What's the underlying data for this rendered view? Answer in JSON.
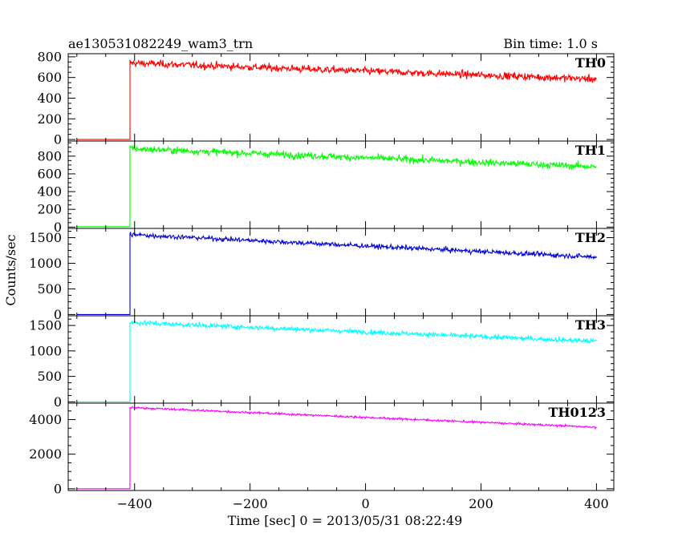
{
  "header": {
    "title": "ae130531082249_wam3_trn",
    "bin_time": "Bin time: 1.0 s"
  },
  "chart_data": {
    "type": "line",
    "xlabel": "Time [sec] 0 = 2013/05/31 08:22:49",
    "ylabel": "Counts/sec",
    "xlim": [
      -515,
      430
    ],
    "x_ticks": [
      -400,
      -200,
      0,
      200,
      400
    ],
    "x_tick_labels": [
      "−400",
      "−200",
      "0",
      "200",
      "400"
    ],
    "x_start": -500,
    "onset_x": -408,
    "x_end": 400,
    "grid": false,
    "series": [
      {
        "name": "TH0",
        "color": "#ff0000",
        "ylim": [
          -15,
          830
        ],
        "y_ticks": [
          0,
          200,
          400,
          600,
          800
        ],
        "y_tick_labels": [
          "0",
          "200",
          "400",
          "600",
          "800"
        ],
        "baseline": 0,
        "peak": 740,
        "end_level": 585,
        "noise": 32
      },
      {
        "name": "TH1",
        "color": "#00ff00",
        "ylim": [
          -15,
          970
        ],
        "y_ticks": [
          0,
          200,
          400,
          600,
          800
        ],
        "y_tick_labels": [
          "0",
          "200",
          "400",
          "600",
          "800"
        ],
        "baseline": 5,
        "peak": 885,
        "end_level": 680,
        "noise": 35
      },
      {
        "name": "TH2",
        "color": "#0000dd",
        "ylim": [
          -25,
          1680
        ],
        "y_ticks": [
          0,
          500,
          1000,
          1500
        ],
        "y_tick_labels": [
          "0",
          "500",
          "1000",
          "1500"
        ],
        "baseline": 0,
        "peak": 1560,
        "end_level": 1120,
        "noise": 42
      },
      {
        "name": "TH3",
        "color": "#00ffff",
        "ylim": [
          -25,
          1690
        ],
        "y_ticks": [
          0,
          500,
          1000,
          1500
        ],
        "y_tick_labels": [
          "0",
          "500",
          "1000",
          "1500"
        ],
        "baseline": 0,
        "peak": 1560,
        "end_level": 1190,
        "noise": 42
      },
      {
        "name": "TH0123",
        "color": "#ff00ff",
        "ylim": [
          -100,
          4950
        ],
        "y_ticks": [
          0,
          2000,
          4000
        ],
        "y_tick_labels": [
          "0",
          "2000",
          "4000"
        ],
        "baseline": 0,
        "peak": 4700,
        "end_level": 3560,
        "noise": 55
      }
    ]
  }
}
